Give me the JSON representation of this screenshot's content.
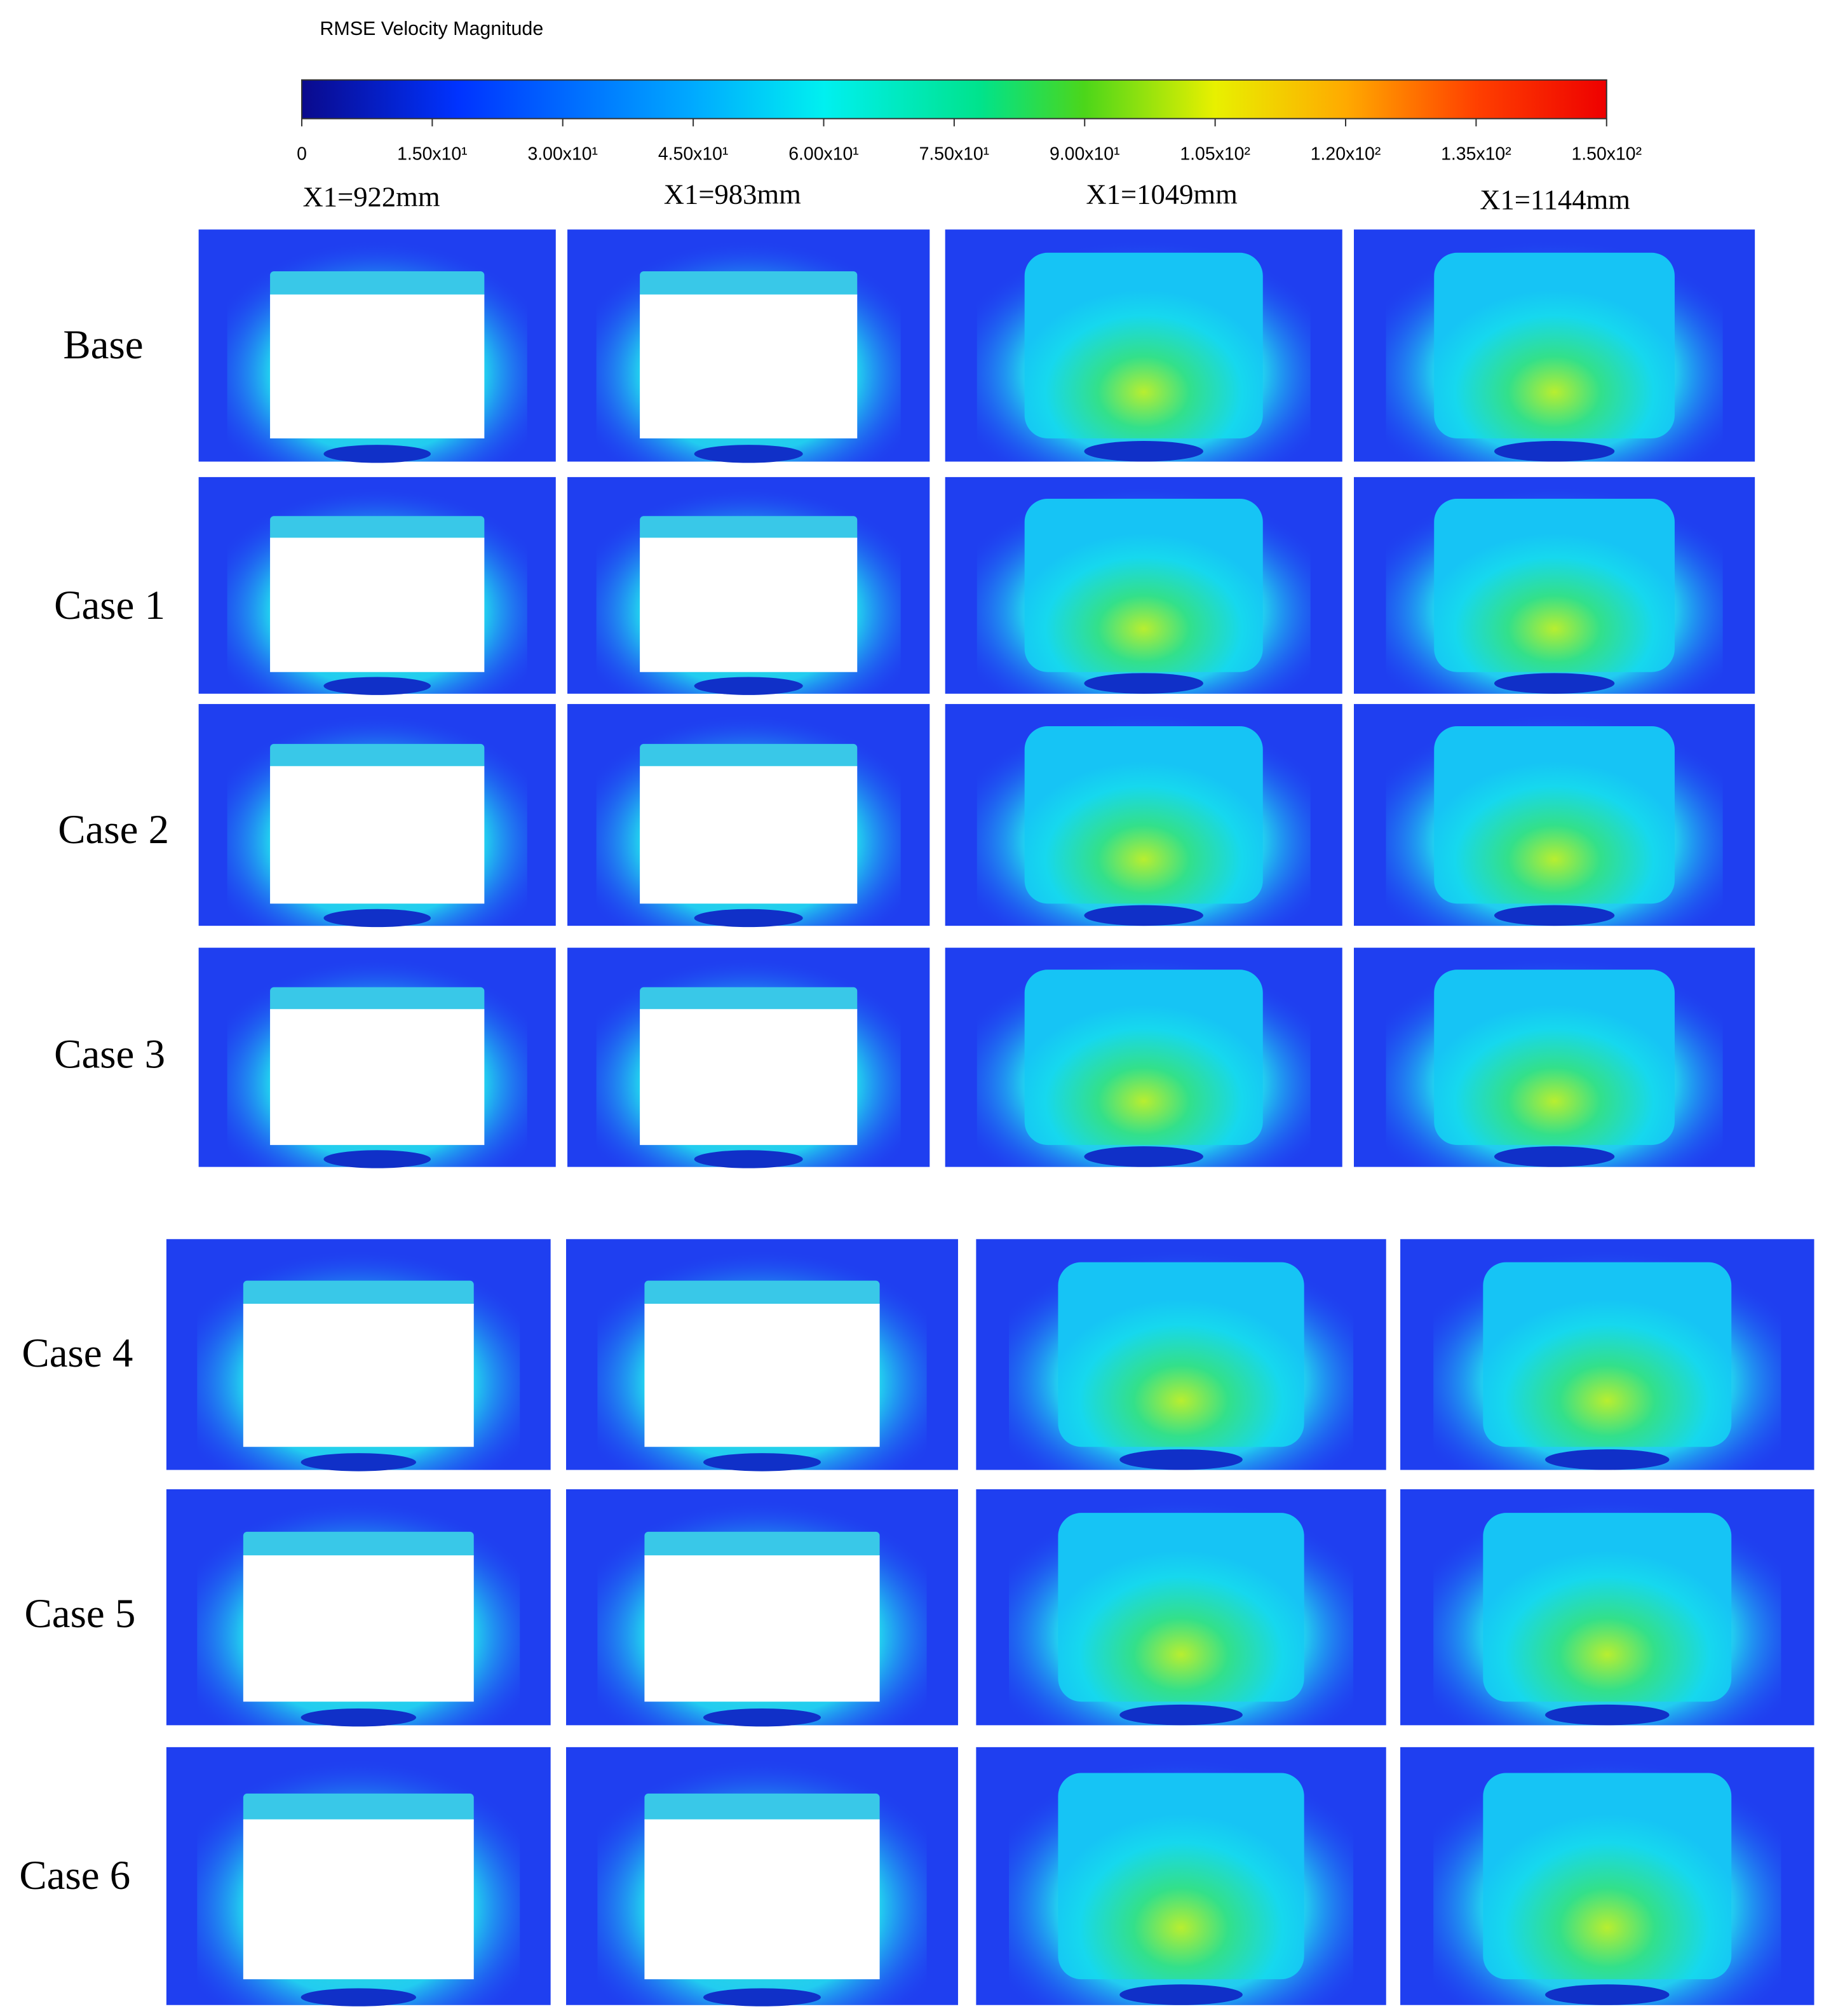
{
  "colorbar": {
    "title": "RMSE Velocity Magnitude",
    "lim": [
      0,
      150
    ],
    "ticks": [
      0,
      {
        "value": 15,
        "label": "1.50x10¹"
      },
      {
        "value": 30,
        "label": "3.00x10¹"
      },
      {
        "value": 45,
        "label": "4.50x10¹"
      },
      {
        "value": 60,
        "label": "6.00x10¹"
      },
      {
        "value": 75,
        "label": "7.50x10¹"
      },
      {
        "value": 90,
        "label": "9.00x10¹"
      },
      {
        "value": 105,
        "label": "1.05x10²"
      },
      {
        "value": 120,
        "label": "1.20x10²"
      },
      {
        "value": 135,
        "label": "1.35x10²"
      },
      {
        "value": 150,
        "label": "1.50x10²"
      }
    ]
  },
  "columns": [
    "X1=922mm",
    "X1=983mm",
    "X1=1049mm",
    "X1=1144mm"
  ],
  "rows": [
    "Base",
    "Case 1",
    "Case 2",
    "Case 3",
    "Case 4",
    "Case 5",
    "Case 6"
  ]
}
